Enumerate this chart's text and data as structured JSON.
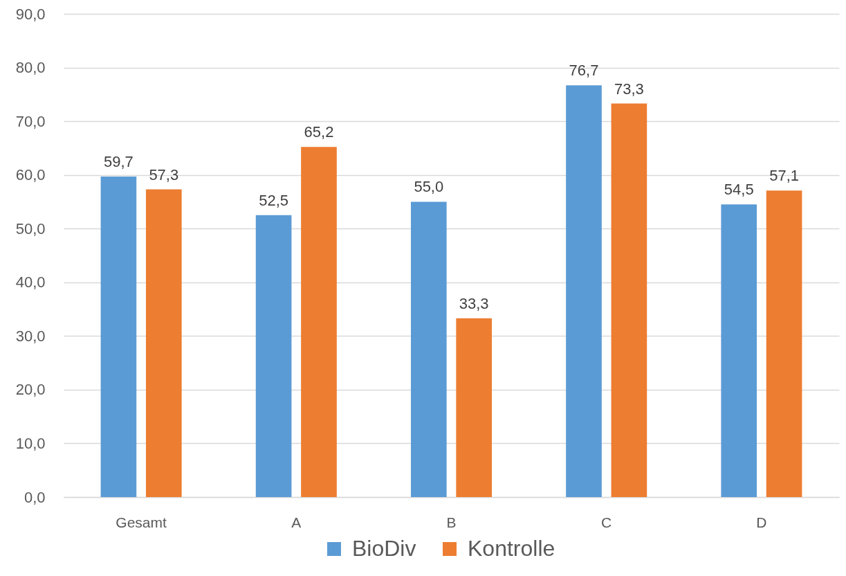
{
  "chart_data": {
    "type": "bar",
    "categories": [
      "Gesamt",
      "A",
      "B",
      "C",
      "D"
    ],
    "series": [
      {
        "name": "BioDiv",
        "color": "#5b9bd5",
        "values": [
          59.7,
          52.5,
          55.0,
          76.7,
          54.5
        ],
        "value_labels": [
          "59,7",
          "52,5",
          "55,0",
          "76,7",
          "54,5"
        ]
      },
      {
        "name": "Kontrolle",
        "color": "#ed7d31",
        "values": [
          57.3,
          65.2,
          33.3,
          73.3,
          57.1
        ],
        "value_labels": [
          "57,3",
          "65,2",
          "33,3",
          "73,3",
          "57,1"
        ]
      }
    ],
    "ylim": [
      0,
      90
    ],
    "yticks": [
      {
        "value": 0,
        "label": "0,0"
      },
      {
        "value": 10,
        "label": "10,0"
      },
      {
        "value": 20,
        "label": "20,0"
      },
      {
        "value": 30,
        "label": "30,0"
      },
      {
        "value": 40,
        "label": "40,0"
      },
      {
        "value": 50,
        "label": "50,0"
      },
      {
        "value": 60,
        "label": "60,0"
      },
      {
        "value": 70,
        "label": "70,0"
      },
      {
        "value": 80,
        "label": "80,0"
      },
      {
        "value": 90,
        "label": "90,0"
      }
    ],
    "grid": "y",
    "legend": "bottom"
  }
}
